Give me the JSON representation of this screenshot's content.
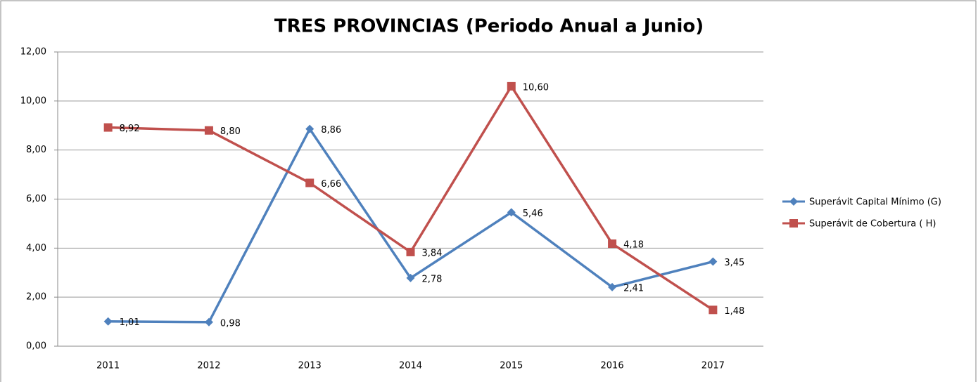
{
  "chart_data": {
    "type": "line",
    "title": "TRES PROVINCIAS (Periodo Anual a Junio)",
    "categories": [
      "2011",
      "2012",
      "2013",
      "2014",
      "2015",
      "2016",
      "2017"
    ],
    "series": [
      {
        "name": "Superávit Capital Mínimo (G)",
        "color": "#4f81bd",
        "marker": "diamond",
        "values": [
          1.01,
          0.98,
          8.86,
          2.78,
          5.46,
          2.41,
          3.45
        ],
        "value_labels": [
          "1,01",
          "0,98",
          "8,86",
          "2,78",
          "5,46",
          "2,41",
          "3,45"
        ]
      },
      {
        "name": "Superávit de Cobertura ( H)",
        "color": "#c0504d",
        "marker": "square",
        "values": [
          8.92,
          8.8,
          6.66,
          3.84,
          10.6,
          4.18,
          1.48
        ],
        "value_labels": [
          "8,92",
          "8,80",
          "6,66",
          "3,84",
          "10,60",
          "4,18",
          "1,48"
        ]
      }
    ],
    "ylim": [
      0,
      12
    ],
    "yticks": [
      {
        "value": 0,
        "label": "0,00"
      },
      {
        "value": 2,
        "label": "2,00"
      },
      {
        "value": 4,
        "label": "4,00"
      },
      {
        "value": 6,
        "label": "6,00"
      },
      {
        "value": 8,
        "label": "8,00"
      },
      {
        "value": 10,
        "label": "10,00"
      },
      {
        "value": 12,
        "label": "12,00"
      }
    ],
    "grid": true,
    "legend": "right"
  }
}
